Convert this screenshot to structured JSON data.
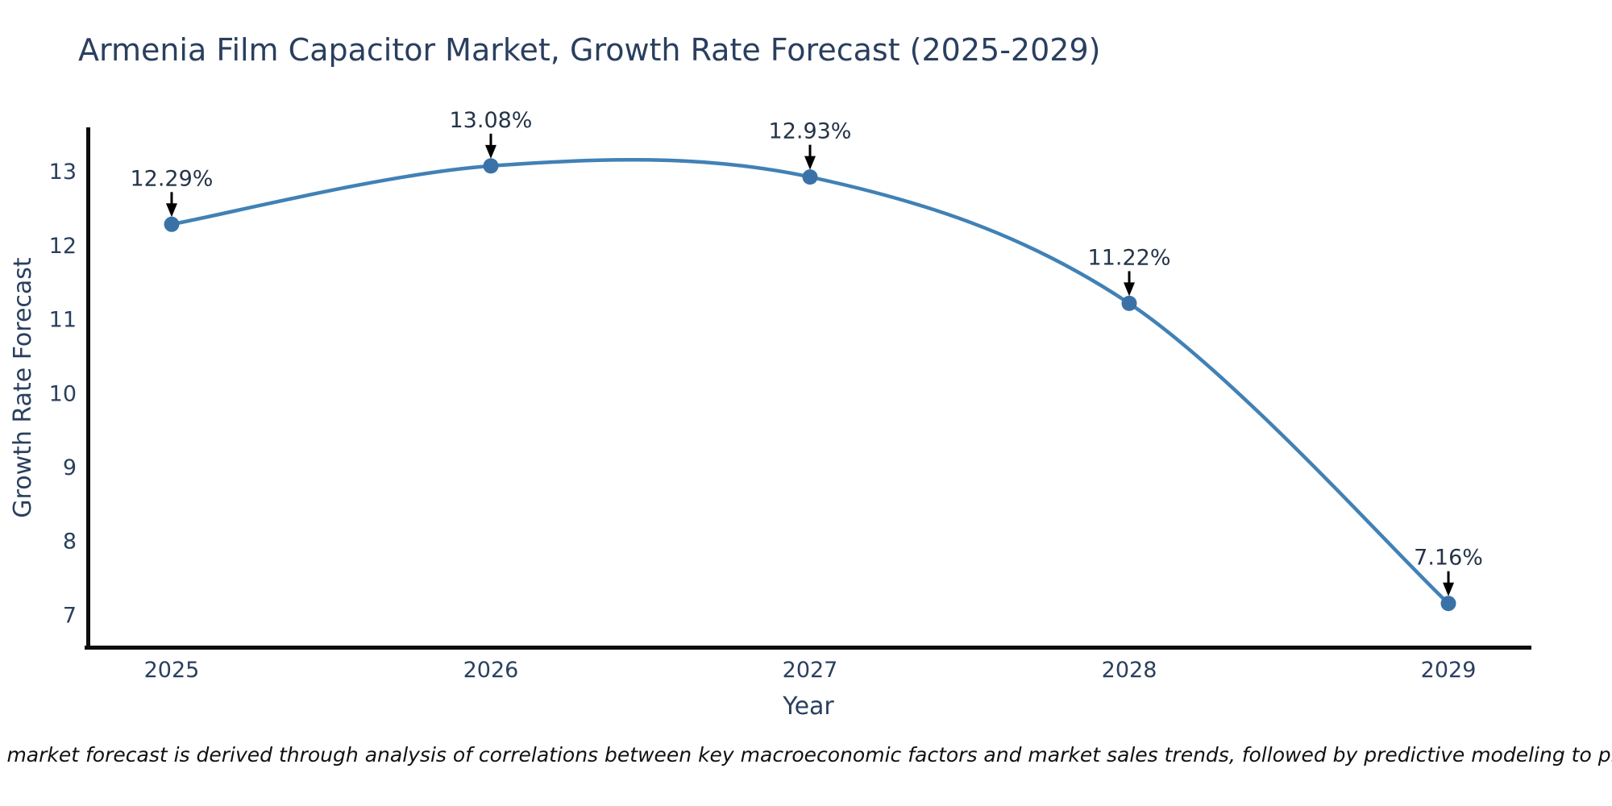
{
  "chart_data": {
    "type": "line",
    "title": "Armenia Film Capacitor Market, Growth Rate Forecast (2025-2029)",
    "xlabel": "Year",
    "ylabel": "Growth Rate Forecast",
    "x": [
      2025,
      2026,
      2027,
      2028,
      2029
    ],
    "y": [
      12.29,
      13.08,
      12.93,
      11.22,
      7.16
    ],
    "point_labels": [
      "12.29%",
      "13.08%",
      "12.93%",
      "11.22%",
      "7.16%"
    ],
    "x_tick_labels": [
      "2025",
      "2026",
      "2027",
      "2028",
      "2029"
    ],
    "y_tick_values": [
      13,
      12,
      11,
      10,
      9,
      8,
      7
    ],
    "xlim": [
      2024.74,
      2029.26
    ],
    "ylim": [
      6.59,
      13.58
    ],
    "grid": false,
    "legend": "none",
    "line_shape": "spline",
    "line_color": "#4181b5",
    "marker_color": "#3a72a8",
    "arrow_color": "#000000"
  },
  "colors": {
    "background": "#ffffff",
    "title": "#2a3f5f",
    "tick_label": "#2a3f5f",
    "axis_line": "#0d0d0d",
    "note": "#111111"
  },
  "note": {
    "text": "Note: The market forecast is derived through analysis of correlations between key macroeconomic factors and market sales trends, followed by predictive modeling to project future sales"
  }
}
